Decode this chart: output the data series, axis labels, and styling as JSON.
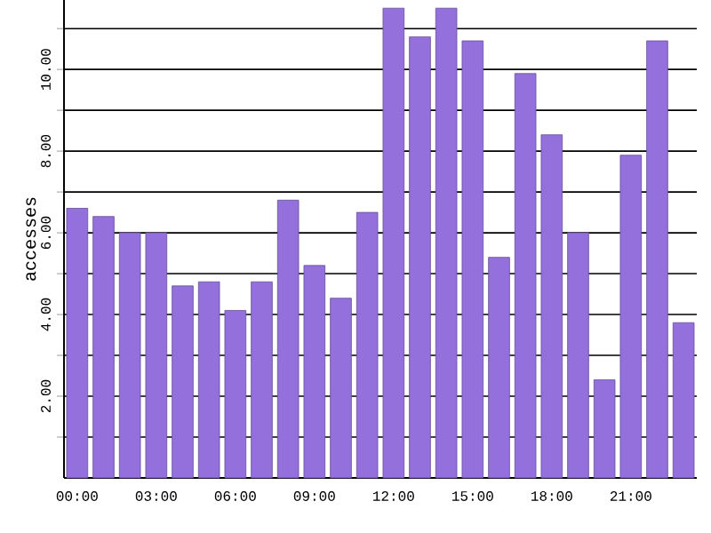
{
  "chart_data": {
    "type": "bar",
    "ylabel": "accesses",
    "categories": [
      "00:00",
      null,
      null,
      "03:00",
      null,
      null,
      "06:00",
      null,
      null,
      "09:00",
      null,
      null,
      "12:00",
      null,
      null,
      "15:00",
      null,
      null,
      "18:00",
      null,
      null,
      "21:00",
      null,
      null
    ],
    "values": [
      6.6,
      6.4,
      6.0,
      6.0,
      4.7,
      4.8,
      4.1,
      4.8,
      6.8,
      5.2,
      4.4,
      6.5,
      11.5,
      10.8,
      11.5,
      10.7,
      5.4,
      9.9,
      8.4,
      6.0,
      2.4,
      7.9,
      10.7,
      3.8
    ],
    "color": "#9370db",
    "ylim": [
      0,
      11.7
    ],
    "yticks": [
      {
        "value": 1,
        "label": null
      },
      {
        "value": 2,
        "label": "2.00"
      },
      {
        "value": 3,
        "label": null
      },
      {
        "value": 4,
        "label": "4.00"
      },
      {
        "value": 5,
        "label": null
      },
      {
        "value": 6,
        "label": "6.00"
      },
      {
        "value": 7,
        "label": null
      },
      {
        "value": 8,
        "label": "8.00"
      },
      {
        "value": 9,
        "label": null
      },
      {
        "value": 10,
        "label": "10.00"
      },
      {
        "value": 11,
        "label": null
      }
    ],
    "grid": "y"
  }
}
